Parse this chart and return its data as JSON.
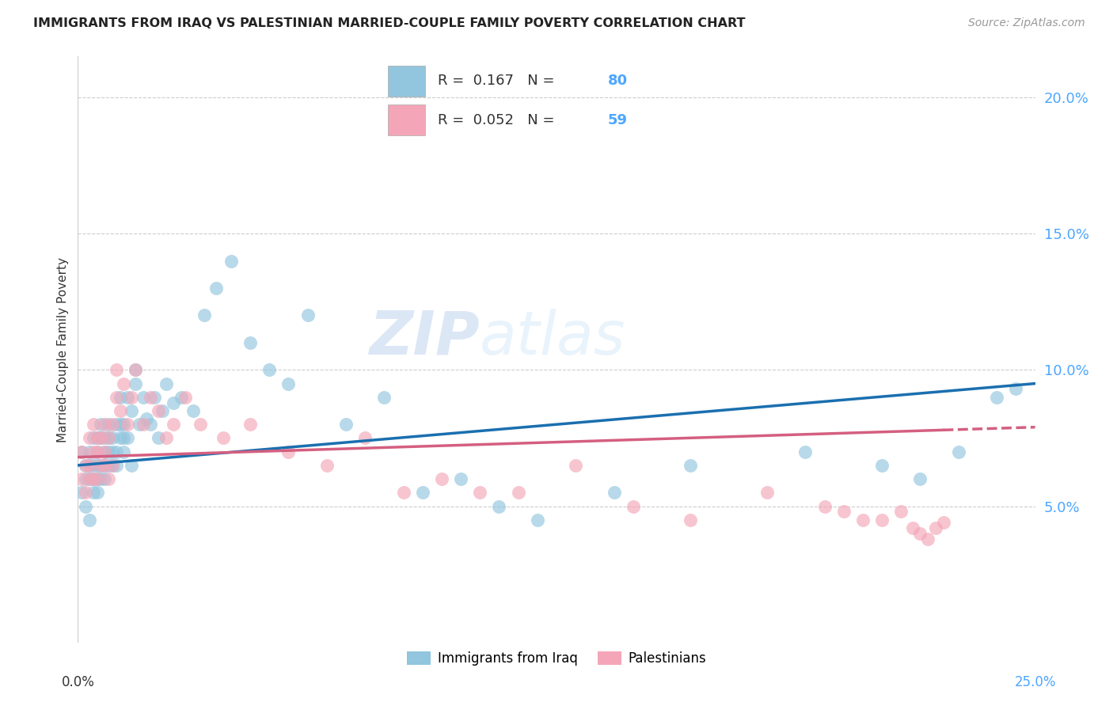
{
  "title": "IMMIGRANTS FROM IRAQ VS PALESTINIAN MARRIED-COUPLE FAMILY POVERTY CORRELATION CHART",
  "source": "Source: ZipAtlas.com",
  "ylabel": "Married-Couple Family Poverty",
  "yticks": [
    0.05,
    0.1,
    0.15,
    0.2
  ],
  "ytick_labels": [
    "5.0%",
    "10.0%",
    "15.0%",
    "20.0%"
  ],
  "xlim": [
    0,
    0.25
  ],
  "ylim": [
    0.0,
    0.215
  ],
  "legend1_r": "0.167",
  "legend1_n": "80",
  "legend2_r": "0.052",
  "legend2_n": "59",
  "legend_label1": "Immigrants from Iraq",
  "legend_label2": "Palestinians",
  "iraq_color": "#92c5de",
  "pal_color": "#f4a6b8",
  "iraq_line_color": "#1a6faf",
  "pal_line_color": "#d45f80",
  "watermark_zip": "ZIP",
  "watermark_atlas": "atlas",
  "iraq_x": [
    0.001,
    0.001,
    0.002,
    0.002,
    0.002,
    0.003,
    0.003,
    0.003,
    0.003,
    0.004,
    0.004,
    0.004,
    0.004,
    0.005,
    0.005,
    0.005,
    0.005,
    0.005,
    0.006,
    0.006,
    0.006,
    0.006,
    0.007,
    0.007,
    0.007,
    0.007,
    0.008,
    0.008,
    0.008,
    0.008,
    0.009,
    0.009,
    0.009,
    0.01,
    0.01,
    0.01,
    0.011,
    0.011,
    0.011,
    0.012,
    0.012,
    0.012,
    0.013,
    0.013,
    0.014,
    0.014,
    0.015,
    0.015,
    0.016,
    0.017,
    0.018,
    0.019,
    0.02,
    0.021,
    0.022,
    0.023,
    0.025,
    0.027,
    0.03,
    0.033,
    0.036,
    0.04,
    0.045,
    0.05,
    0.055,
    0.06,
    0.07,
    0.08,
    0.09,
    0.1,
    0.11,
    0.12,
    0.14,
    0.16,
    0.19,
    0.21,
    0.22,
    0.23,
    0.24,
    0.245
  ],
  "iraq_y": [
    0.07,
    0.055,
    0.065,
    0.05,
    0.06,
    0.045,
    0.065,
    0.07,
    0.06,
    0.055,
    0.065,
    0.075,
    0.06,
    0.07,
    0.06,
    0.075,
    0.065,
    0.055,
    0.065,
    0.06,
    0.075,
    0.08,
    0.07,
    0.06,
    0.075,
    0.065,
    0.065,
    0.075,
    0.07,
    0.08,
    0.065,
    0.075,
    0.07,
    0.07,
    0.08,
    0.065,
    0.08,
    0.075,
    0.09,
    0.07,
    0.075,
    0.08,
    0.09,
    0.075,
    0.085,
    0.065,
    0.095,
    0.1,
    0.08,
    0.09,
    0.082,
    0.08,
    0.09,
    0.075,
    0.085,
    0.095,
    0.088,
    0.09,
    0.085,
    0.12,
    0.13,
    0.14,
    0.11,
    0.1,
    0.095,
    0.12,
    0.08,
    0.09,
    0.055,
    0.06,
    0.05,
    0.045,
    0.055,
    0.065,
    0.07,
    0.065,
    0.06,
    0.07,
    0.09,
    0.093
  ],
  "pal_x": [
    0.001,
    0.001,
    0.002,
    0.002,
    0.003,
    0.003,
    0.003,
    0.004,
    0.004,
    0.004,
    0.005,
    0.005,
    0.005,
    0.006,
    0.006,
    0.007,
    0.007,
    0.007,
    0.008,
    0.008,
    0.009,
    0.009,
    0.01,
    0.01,
    0.011,
    0.012,
    0.013,
    0.014,
    0.015,
    0.017,
    0.019,
    0.021,
    0.023,
    0.025,
    0.028,
    0.032,
    0.038,
    0.045,
    0.055,
    0.065,
    0.075,
    0.085,
    0.095,
    0.105,
    0.115,
    0.13,
    0.145,
    0.16,
    0.18,
    0.195,
    0.2,
    0.205,
    0.21,
    0.215,
    0.218,
    0.22,
    0.222,
    0.224,
    0.226
  ],
  "pal_y": [
    0.07,
    0.06,
    0.065,
    0.055,
    0.06,
    0.075,
    0.065,
    0.07,
    0.06,
    0.08,
    0.07,
    0.06,
    0.075,
    0.065,
    0.075,
    0.07,
    0.065,
    0.08,
    0.06,
    0.075,
    0.08,
    0.065,
    0.1,
    0.09,
    0.085,
    0.095,
    0.08,
    0.09,
    0.1,
    0.08,
    0.09,
    0.085,
    0.075,
    0.08,
    0.09,
    0.08,
    0.075,
    0.08,
    0.07,
    0.065,
    0.075,
    0.055,
    0.06,
    0.055,
    0.055,
    0.065,
    0.05,
    0.045,
    0.055,
    0.05,
    0.048,
    0.045,
    0.045,
    0.048,
    0.042,
    0.04,
    0.038,
    0.042,
    0.044
  ]
}
